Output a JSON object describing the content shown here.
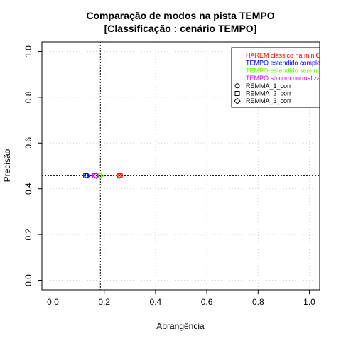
{
  "chart_data": {
    "type": "scatter",
    "title": "Comparação de modos na pista TEMPO",
    "subtitle": "[Classificação : cenário TEMPO]",
    "xlabel": "Abrangência",
    "ylabel": "Precisão",
    "xlim": [
      0,
      1
    ],
    "ylim": [
      0,
      1
    ],
    "xticks": [
      "0.0",
      "0.2",
      "0.4",
      "0.6",
      "0.8",
      "1.0"
    ],
    "yticks": [
      "0.0",
      "0.2",
      "0.4",
      "0.6",
      "0.8",
      "1.0"
    ],
    "grid": true,
    "legend_position": "top-right",
    "reference_lines": {
      "x": 0.185,
      "y": 0.457
    },
    "legend_series": [
      {
        "name": "HAREM clássico na miniC",
        "color": "#ff0000"
      },
      {
        "name": "TEMPO estendido comple",
        "color": "#0000ff"
      },
      {
        "name": "TEMPO estendido sem no",
        "color": "#66ff00"
      },
      {
        "name": "TEMPO só com normaliza",
        "color": "#cc00ff"
      }
    ],
    "legend_markers": [
      {
        "name": "REMMA_1_corr",
        "shape": "circle"
      },
      {
        "name": "REMMA_2_corr",
        "shape": "square"
      },
      {
        "name": "REMMA_3_corr",
        "shape": "diamond"
      }
    ],
    "points": [
      {
        "series": 0,
        "shape": "circle",
        "x": 0.257,
        "y": 0.457
      },
      {
        "series": 0,
        "shape": "square",
        "x": 0.262,
        "y": 0.457
      },
      {
        "series": 0,
        "shape": "diamond",
        "x": 0.259,
        "y": 0.457
      },
      {
        "series": 1,
        "shape": "circle",
        "x": 0.131,
        "y": 0.457
      },
      {
        "series": 1,
        "shape": "square",
        "x": 0.128,
        "y": 0.457
      },
      {
        "series": 1,
        "shape": "diamond",
        "x": 0.133,
        "y": 0.457
      },
      {
        "series": 2,
        "shape": "circle",
        "x": 0.183,
        "y": 0.457
      },
      {
        "series": 2,
        "shape": "square",
        "x": 0.18,
        "y": 0.457
      },
      {
        "series": 2,
        "shape": "diamond",
        "x": 0.186,
        "y": 0.457
      },
      {
        "series": 3,
        "shape": "circle",
        "x": 0.166,
        "y": 0.457
      },
      {
        "series": 3,
        "shape": "square",
        "x": 0.163,
        "y": 0.457
      },
      {
        "series": 3,
        "shape": "diamond",
        "x": 0.169,
        "y": 0.457
      }
    ]
  }
}
